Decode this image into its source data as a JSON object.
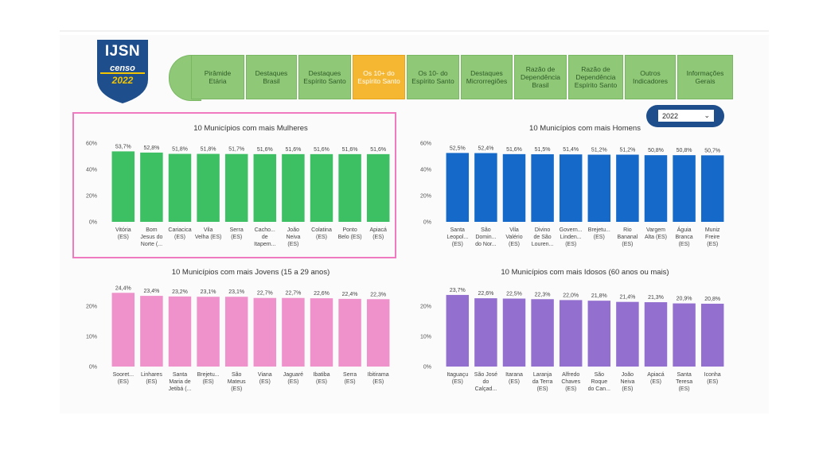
{
  "logo": {
    "title": "IJSN",
    "subtitle": "censo",
    "year": "2022"
  },
  "nav": {
    "items": [
      {
        "label": "Pirâmide Etária",
        "active": false
      },
      {
        "label": "Destaques\nBrasil",
        "active": false
      },
      {
        "label": "Destaques\nEspírito Santo",
        "active": false
      },
      {
        "label": "Os 10+ do\nEspírito Santo",
        "active": true
      },
      {
        "label": "Os 10- do\nEspírito Santo",
        "active": false
      },
      {
        "label": "Destaques\nMicrorregiões",
        "active": false
      },
      {
        "label": "Razão de\nDependência\nBrasil",
        "active": false
      },
      {
        "label": "Razão de\nDependência\nEspírito Santo",
        "active": false
      },
      {
        "label": "Outros\nIndicadores",
        "active": false
      },
      {
        "label": "Informações\nGerais",
        "active": false
      }
    ]
  },
  "year_select": {
    "value": "2022"
  },
  "chart_data": [
    {
      "type": "bar",
      "title": "10 Municípios com mais Mulheres",
      "color": "#3dbf63",
      "ylim": [
        0,
        60
      ],
      "yticks": [
        "0%",
        "20%",
        "40%",
        "60%"
      ],
      "categories": [
        "Vitória\n(ES)",
        "Bom\nJesus do\nNorte (...",
        "Cariacica\n(ES)",
        "Vila\nVelha (ES)",
        "Serra\n(ES)",
        "Cacho...\nde\nItapem...",
        "João\nNeiva\n(ES)",
        "Colatina\n(ES)",
        "Ponto\nBelo (ES)",
        "Apiacá\n(ES)"
      ],
      "values": [
        53.7,
        52.8,
        51.8,
        51.8,
        51.7,
        51.6,
        51.6,
        51.6,
        51.6,
        51.6
      ],
      "labels": [
        "53,7%",
        "52,8%",
        "51,8%",
        "51,8%",
        "51,7%",
        "51,6%",
        "51,6%",
        "51,6%",
        "51,6%",
        "51,6%"
      ]
    },
    {
      "type": "bar",
      "title": "10 Municípios com mais Homens",
      "color": "#1469c9",
      "ylim": [
        0,
        60
      ],
      "yticks": [
        "0%",
        "20%",
        "40%",
        "60%"
      ],
      "categories": [
        "Santa\nLeopol...\n(ES)",
        "São\nDomin...\ndo Nor...",
        "Vila\nValério\n(ES)",
        "Divino\nde São\nLouren...",
        "Govern...\nLinden...\n(ES)",
        "Brejetu...\n(ES)",
        "Rio\nBananal\n(ES)",
        "Vargem\nAlta (ES)",
        "Águia\nBranca\n(ES)",
        "Muniz\nFreire\n(ES)"
      ],
      "values": [
        52.5,
        52.4,
        51.6,
        51.5,
        51.4,
        51.2,
        51.2,
        50.8,
        50.8,
        50.7
      ],
      "labels": [
        "52,5%",
        "52,4%",
        "51,6%",
        "51,5%",
        "51,4%",
        "51,2%",
        "51,2%",
        "50,8%",
        "50,8%",
        "50,7%"
      ]
    },
    {
      "type": "bar",
      "title": "10 Municípios com mais Jovens (15 a 29 anos)",
      "color": "#ef92cc",
      "ylim": [
        0,
        25
      ],
      "yticks": [
        "0%",
        "10%",
        "20%"
      ],
      "categories": [
        "Sooret...\n(ES)",
        "Linhares\n(ES)",
        "Santa\nMaria de\nJetibá (...",
        "Brejetu...\n(ES)",
        "São\nMateus\n(ES)",
        "Viana\n(ES)",
        "Jaguaré\n(ES)",
        "Ibatiba\n(ES)",
        "Serra\n(ES)",
        "Ibitirama\n(ES)"
      ],
      "values": [
        24.4,
        23.4,
        23.2,
        23.1,
        23.1,
        22.7,
        22.7,
        22.6,
        22.4,
        22.3
      ],
      "labels": [
        "24,4%",
        "23,4%",
        "23,2%",
        "23,1%",
        "23,1%",
        "22,7%",
        "22,7%",
        "22,6%",
        "22,4%",
        "22,3%"
      ]
    },
    {
      "type": "bar",
      "title": "10 Municípios com mais Idosos (60 anos ou mais)",
      "color": "#9370d0",
      "ylim": [
        0,
        25
      ],
      "yticks": [
        "0%",
        "10%",
        "20%"
      ],
      "categories": [
        "Itaguaçu\n(ES)",
        "São José\ndo\nCalçad...",
        "Itarana\n(ES)",
        "Laranja\nda Terra\n(ES)",
        "Alfredo\nChaves\n(ES)",
        "São\nRoque\ndo Can...",
        "João\nNeiva\n(ES)",
        "Apiacá\n(ES)",
        "Santa\nTeresa\n(ES)",
        "Iconha\n(ES)"
      ],
      "values": [
        23.7,
        22.6,
        22.5,
        22.3,
        22.0,
        21.8,
        21.4,
        21.3,
        20.9,
        20.8
      ],
      "labels": [
        "23,7%",
        "22,6%",
        "22,5%",
        "22,3%",
        "22,0%",
        "21,8%",
        "21,4%",
        "21,3%",
        "20,9%",
        "20,8%"
      ]
    }
  ]
}
